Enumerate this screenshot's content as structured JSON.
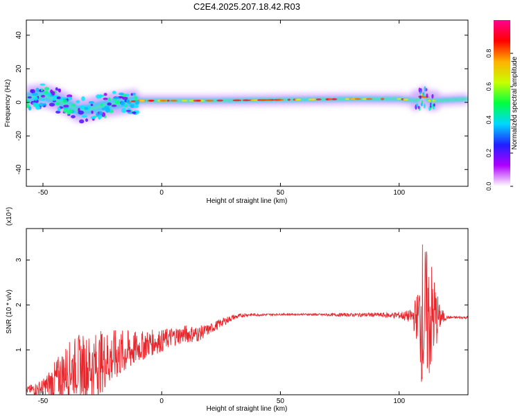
{
  "figure": {
    "title": "C2E4.2025.207.18.42.R03"
  },
  "colorbar": {
    "label": "Normalized spectral amplitude",
    "ticks": [
      "0.0",
      "0.2",
      "0.4",
      "0.6",
      "0.8"
    ],
    "stops": [
      "#ffffff",
      "#b000ff",
      "#2020ff",
      "#00d8ff",
      "#00ff40",
      "#c8ff00",
      "#ffb000",
      "#ff0000",
      "#ff0090"
    ]
  },
  "colors": {
    "snr_line": "#e8272d",
    "axis": "#000000"
  },
  "chart_data": [
    {
      "type": "heatmap",
      "xlabel": "Height of straight line (km)",
      "ylabel": "Frequency (Hz)",
      "xlim": [
        -57,
        129
      ],
      "ylim": [
        -50,
        49
      ],
      "x_ticks": [
        "-50",
        "0",
        "50",
        "100"
      ],
      "y_ticks": [
        "-40",
        "-20",
        "0",
        "20",
        "40"
      ],
      "ridge": {
        "x": [
          -55,
          -50,
          -45,
          -40,
          -35,
          -30,
          -25,
          -20,
          -15,
          -10,
          0,
          20,
          50,
          80,
          100,
          108,
          110,
          112,
          115,
          129
        ],
        "freq_hz": [
          3,
          4,
          2,
          -1,
          -5,
          -4,
          -2,
          -1,
          0,
          1,
          1,
          1,
          1.5,
          2,
          2,
          1,
          5,
          1,
          1,
          2
        ]
      }
    },
    {
      "type": "line",
      "xlabel": "Height of straight line (km)",
      "ylabel": "SNR (10 * v/v)",
      "multiplier": "(x10⁴)",
      "xlim": [
        -57,
        129
      ],
      "ylim": [
        0,
        3.7
      ],
      "x_ticks": [
        "-50",
        "0",
        "50",
        "100"
      ],
      "y_ticks": [
        "1",
        "2",
        "3"
      ],
      "series": [
        {
          "x": [
            -57,
            -50,
            -45,
            -40,
            -35,
            -30,
            -25,
            -20,
            -15,
            -10,
            -5,
            0,
            5,
            10,
            15,
            20,
            25,
            30,
            35,
            40,
            50,
            60,
            70,
            80,
            90,
            95,
            100,
            105,
            108,
            110,
            111,
            113,
            115,
            117,
            120,
            129
          ],
          "y": [
            0.1,
            0.15,
            0.3,
            0.55,
            0.65,
            0.6,
            0.75,
            0.85,
            0.95,
            1.05,
            1.15,
            1.2,
            1.3,
            1.35,
            1.35,
            1.45,
            1.6,
            1.72,
            1.78,
            1.78,
            1.79,
            1.79,
            1.78,
            1.78,
            1.78,
            1.77,
            1.77,
            1.74,
            1.73,
            1.75,
            1.72,
            1.72,
            1.73,
            1.72,
            1.72,
            1.72
          ],
          "amplitude": [
            0.08,
            0.2,
            0.45,
            0.6,
            0.7,
            0.75,
            0.7,
            0.6,
            0.5,
            0.35,
            0.3,
            0.25,
            0.22,
            0.2,
            0.18,
            0.12,
            0.1,
            0.06,
            0.04,
            0.03,
            0.02,
            0.02,
            0.03,
            0.04,
            0.05,
            0.06,
            0.08,
            0.15,
            0.6,
            1.9,
            1.6,
            1.4,
            0.9,
            0.3,
            0.03,
            0.03
          ]
        }
      ]
    }
  ]
}
